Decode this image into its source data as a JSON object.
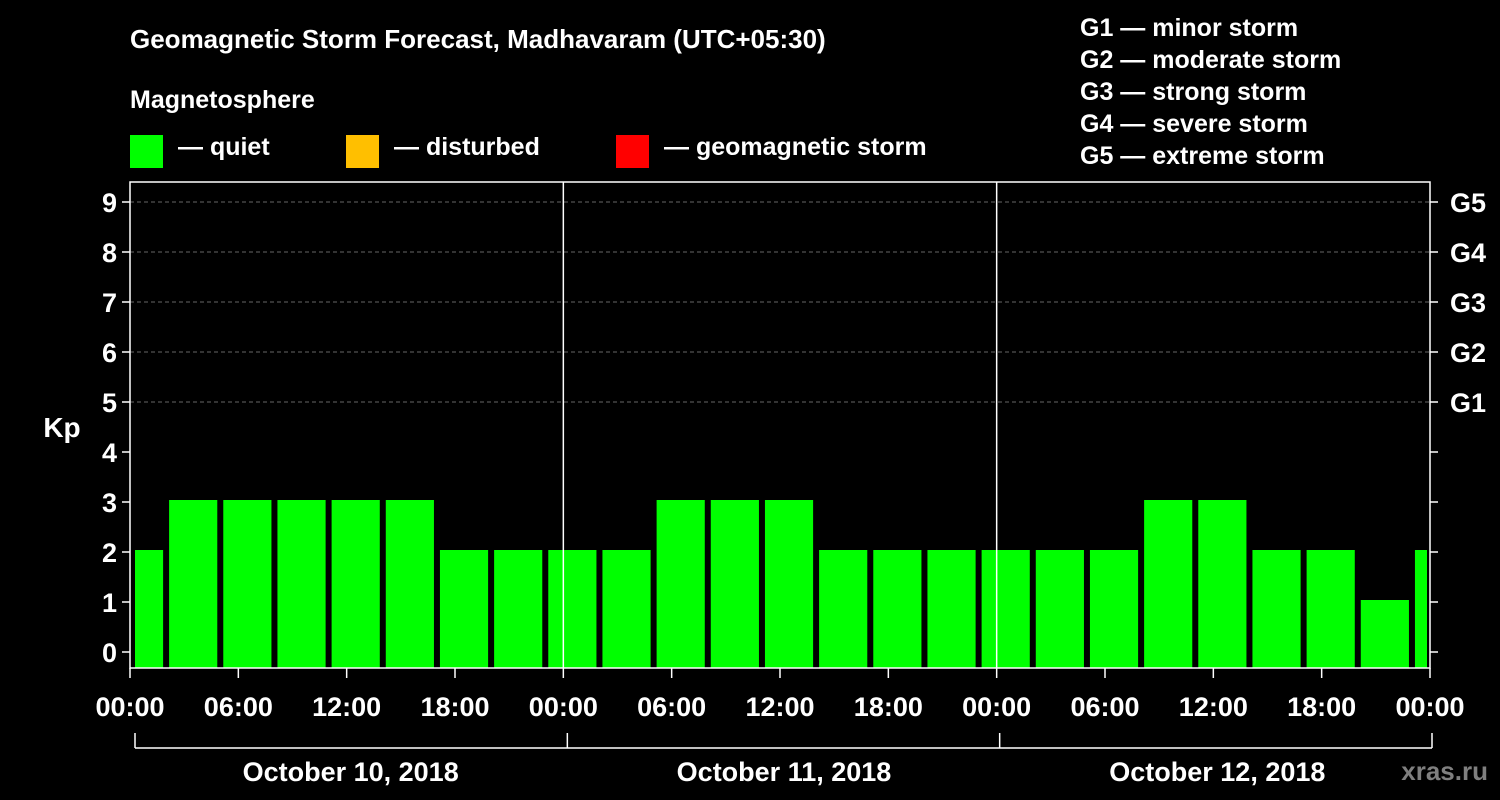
{
  "chart_data": {
    "type": "bar",
    "title": "Geomagnetic Storm Forecast, Madhavaram (UTC+05:30)",
    "subtitle": "Magnetosphere",
    "ylabel": "Kp",
    "ylim": [
      0,
      9
    ],
    "yticks": [
      "0",
      "1",
      "2",
      "3",
      "4",
      "5",
      "6",
      "7",
      "8",
      "9"
    ],
    "right_ticks": [
      {
        "kp": 5,
        "label": "G1"
      },
      {
        "kp": 6,
        "label": "G2"
      },
      {
        "kp": 7,
        "label": "G3"
      },
      {
        "kp": 8,
        "label": "G4"
      },
      {
        "kp": 9,
        "label": "G5"
      }
    ],
    "x_start": "2018-10-10 00:00",
    "x_end": "2018-10-13 00:00",
    "xticks": [
      "00:00",
      "06:00",
      "12:00",
      "18:00",
      "00:00",
      "06:00",
      "12:00",
      "18:00",
      "00:00",
      "06:00",
      "12:00",
      "18:00",
      "00:00"
    ],
    "days": [
      "October 10, 2018",
      "October 11, 2018",
      "October 12, 2018"
    ],
    "bars": [
      {
        "start": "2018-10-10 00:00",
        "end": "2018-10-10 02:00",
        "kp": 2
      },
      {
        "start": "2018-10-10 02:00",
        "end": "2018-10-10 05:00",
        "kp": 3
      },
      {
        "start": "2018-10-10 05:00",
        "end": "2018-10-10 08:00",
        "kp": 3
      },
      {
        "start": "2018-10-10 08:00",
        "end": "2018-10-10 11:00",
        "kp": 3
      },
      {
        "start": "2018-10-10 11:00",
        "end": "2018-10-10 14:00",
        "kp": 3
      },
      {
        "start": "2018-10-10 14:00",
        "end": "2018-10-10 17:00",
        "kp": 3
      },
      {
        "start": "2018-10-10 17:00",
        "end": "2018-10-10 20:00",
        "kp": 2
      },
      {
        "start": "2018-10-10 20:00",
        "end": "2018-10-10 23:00",
        "kp": 2
      },
      {
        "start": "2018-10-10 23:00",
        "end": "2018-10-11 02:00",
        "kp": 2
      },
      {
        "start": "2018-10-11 02:00",
        "end": "2018-10-11 05:00",
        "kp": 2
      },
      {
        "start": "2018-10-11 05:00",
        "end": "2018-10-11 08:00",
        "kp": 3
      },
      {
        "start": "2018-10-11 08:00",
        "end": "2018-10-11 11:00",
        "kp": 3
      },
      {
        "start": "2018-10-11 11:00",
        "end": "2018-10-11 14:00",
        "kp": 3
      },
      {
        "start": "2018-10-11 14:00",
        "end": "2018-10-11 17:00",
        "kp": 2
      },
      {
        "start": "2018-10-11 17:00",
        "end": "2018-10-11 20:00",
        "kp": 2
      },
      {
        "start": "2018-10-11 20:00",
        "end": "2018-10-11 23:00",
        "kp": 2
      },
      {
        "start": "2018-10-11 23:00",
        "end": "2018-10-12 02:00",
        "kp": 2
      },
      {
        "start": "2018-10-12 02:00",
        "end": "2018-10-12 05:00",
        "kp": 2
      },
      {
        "start": "2018-10-12 05:00",
        "end": "2018-10-12 08:00",
        "kp": 2
      },
      {
        "start": "2018-10-12 08:00",
        "end": "2018-10-12 11:00",
        "kp": 3
      },
      {
        "start": "2018-10-12 11:00",
        "end": "2018-10-12 14:00",
        "kp": 3
      },
      {
        "start": "2018-10-12 14:00",
        "end": "2018-10-12 17:00",
        "kp": 2
      },
      {
        "start": "2018-10-12 17:00",
        "end": "2018-10-12 20:00",
        "kp": 2
      },
      {
        "start": "2018-10-12 20:00",
        "end": "2018-10-12 23:00",
        "kp": 1
      },
      {
        "start": "2018-10-12 23:00",
        "end": "2018-10-13 00:00",
        "kp": 2
      }
    ],
    "grid": true
  },
  "legend": {
    "quiet": {
      "label": "— quiet",
      "color": "#00ff00"
    },
    "disturbed": {
      "label": "— disturbed",
      "color": "#ffbf00"
    },
    "storm": {
      "label": "— geomagnetic storm",
      "color": "#ff0000"
    }
  },
  "storm_scale": [
    "G1 — minor storm",
    "G2 — moderate storm",
    "G3 — strong storm",
    "G4 — severe storm",
    "G5 — extreme storm"
  ],
  "brand": "xras.ru"
}
